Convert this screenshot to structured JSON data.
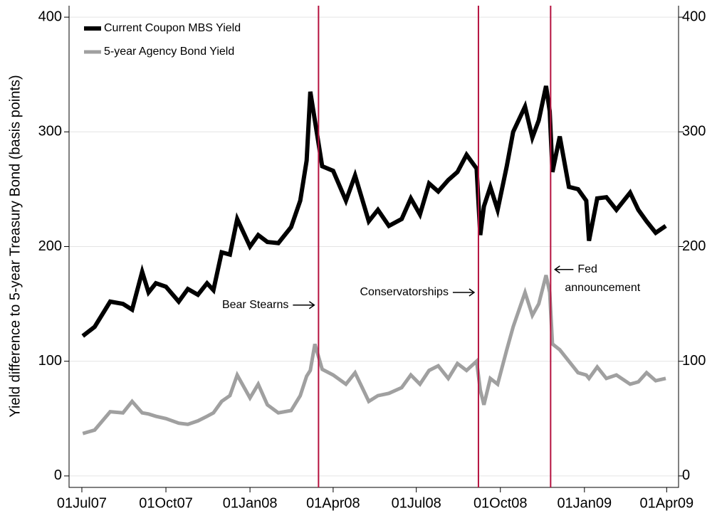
{
  "chart_data": {
    "type": "line",
    "y_label": "Yield difference to 5-year Treasury Bond (basis points)",
    "x": [
      "2007-07-02",
      "2007-07-15",
      "2007-08-01",
      "2007-08-15",
      "2007-08-25",
      "2007-09-05",
      "2007-09-12",
      "2007-09-20",
      "2007-10-01",
      "2007-10-15",
      "2007-10-25",
      "2007-11-05",
      "2007-11-15",
      "2007-11-22",
      "2007-12-01",
      "2007-12-10",
      "2007-12-18",
      "2008-01-01",
      "2008-01-10",
      "2008-01-20",
      "2008-02-01",
      "2008-02-15",
      "2008-02-25",
      "2008-03-03",
      "2008-03-07",
      "2008-03-12",
      "2008-03-20",
      "2008-04-01",
      "2008-04-15",
      "2008-04-25",
      "2008-05-10",
      "2008-05-20",
      "2008-06-01",
      "2008-06-15",
      "2008-06-25",
      "2008-07-05",
      "2008-07-15",
      "2008-07-25",
      "2008-08-05",
      "2008-08-15",
      "2008-08-25",
      "2008-09-05",
      "2008-09-09",
      "2008-09-13",
      "2008-09-20",
      "2008-09-28",
      "2008-10-08",
      "2008-10-15",
      "2008-10-28",
      "2008-11-05",
      "2008-11-12",
      "2008-11-20",
      "2008-11-24",
      "2008-11-27",
      "2008-12-05",
      "2008-12-15",
      "2008-12-25",
      "2009-01-03",
      "2009-01-06",
      "2009-01-15",
      "2009-01-25",
      "2009-02-05",
      "2009-02-20",
      "2009-03-01",
      "2009-03-10",
      "2009-03-20",
      "2009-03-31"
    ],
    "series": [
      {
        "name": "Current Coupon MBS Yield",
        "color": "#000000",
        "values": [
          122,
          130,
          152,
          150,
          145,
          178,
          160,
          168,
          165,
          152,
          163,
          158,
          168,
          162,
          195,
          193,
          224,
          200,
          210,
          204,
          203,
          217,
          240,
          275,
          335,
          310,
          270,
          266,
          240,
          262,
          222,
          232,
          218,
          224,
          242,
          228,
          255,
          248,
          258,
          265,
          280,
          268,
          210,
          235,
          252,
          232,
          270,
          300,
          322,
          295,
          310,
          340,
          318,
          265,
          296,
          252,
          250,
          240,
          205,
          242,
          243,
          232,
          247,
          232,
          222,
          212,
          218
        ]
      },
      {
        "name": "5-year Agency Bond Yield",
        "color": "#a0a0a0",
        "values": [
          37,
          40,
          56,
          55,
          65,
          55,
          54,
          52,
          50,
          46,
          45,
          48,
          52,
          55,
          65,
          70,
          88,
          68,
          80,
          62,
          55,
          57,
          70,
          87,
          92,
          115,
          93,
          88,
          80,
          90,
          65,
          70,
          72,
          77,
          88,
          80,
          92,
          96,
          85,
          98,
          92,
          100,
          75,
          62,
          85,
          80,
          110,
          130,
          160,
          140,
          150,
          175,
          160,
          115,
          110,
          100,
          90,
          88,
          85,
          95,
          85,
          88,
          80,
          82,
          90,
          83,
          85
        ]
      }
    ],
    "xlim": [
      "2007-06-17",
      "2009-04-14"
    ],
    "xticks": [
      {
        "value": "2007-07-01",
        "label": "01Jul07"
      },
      {
        "value": "2007-10-01",
        "label": "01Oct07"
      },
      {
        "value": "2008-01-01",
        "label": "01Jan08"
      },
      {
        "value": "2008-04-01",
        "label": "01Apr08"
      },
      {
        "value": "2008-07-01",
        "label": "01Jul08"
      },
      {
        "value": "2008-10-01",
        "label": "01Oct08"
      },
      {
        "value": "2009-01-01",
        "label": "01Jan09"
      },
      {
        "value": "2009-04-01",
        "label": "01Apr09"
      }
    ],
    "ylim": [
      -10,
      410
    ],
    "yticks": [
      0,
      100,
      200,
      300,
      400
    ],
    "y2lim": [
      -10,
      410
    ],
    "y2ticks": [
      0,
      100,
      200,
      300,
      400
    ],
    "grid": true,
    "legend": "upper left",
    "vlines": [
      "2008-03-16",
      "2008-09-07",
      "2008-11-25"
    ],
    "vline_color": "#b5123f",
    "annotations": [
      {
        "lines": [
          "Bear Stearns"
        ],
        "x": "2008-03-16",
        "y": 149
      },
      {
        "lines": [
          "Conservatorships"
        ],
        "x": "2008-09-07",
        "y": 160
      },
      {
        "lines": [
          "Fed",
          "announcement"
        ],
        "x": "2008-11-25",
        "y": 180
      }
    ]
  }
}
